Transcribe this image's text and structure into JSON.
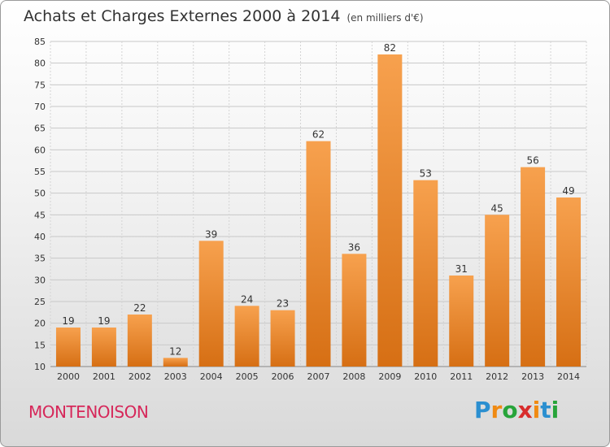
{
  "title": "Achats et Charges Externes 2000 à 2014",
  "subtitle": "(en milliers d'€)",
  "commune": "MONTENOISON",
  "brand": {
    "letters": [
      "P",
      "r",
      "o",
      "x",
      "i",
      "t",
      "i"
    ],
    "colors": [
      "#2b8fd0",
      "#f08a12",
      "#27a43a",
      "#d82c2c",
      "#f08a12",
      "#2b8fd0",
      "#27a43a"
    ]
  },
  "colors": {
    "bar_top": "#f7a14e",
    "bar_bottom": "#d66f14",
    "commune": "#d6285a"
  },
  "chart_data": {
    "type": "bar",
    "title": "Achats et Charges Externes 2000 à 2014",
    "subtitle": "(en milliers d'€)",
    "categories": [
      "2000",
      "2001",
      "2002",
      "2003",
      "2004",
      "2005",
      "2006",
      "2007",
      "2008",
      "2009",
      "2010",
      "2011",
      "2012",
      "2013",
      "2014"
    ],
    "values": [
      19,
      19,
      22,
      12,
      39,
      24,
      23,
      62,
      36,
      82,
      53,
      31,
      45,
      56,
      49
    ],
    "ylim": [
      10,
      85
    ],
    "yticks": [
      10,
      15,
      20,
      25,
      30,
      35,
      40,
      45,
      50,
      55,
      60,
      65,
      70,
      75,
      80,
      85
    ],
    "grid": true,
    "legend": "none"
  }
}
